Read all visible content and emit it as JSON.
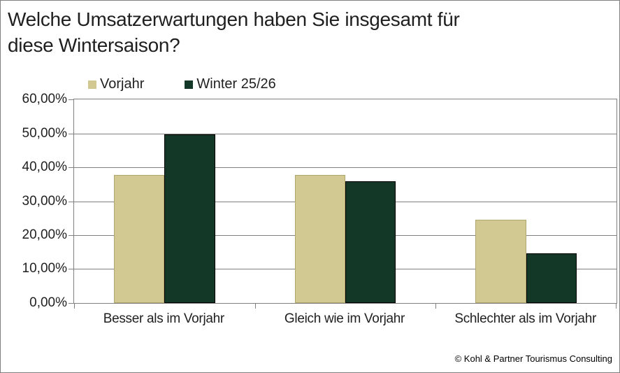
{
  "page": {
    "background": "#ffffff",
    "border_color": "#808080"
  },
  "title": "Welche Umsatzerwartungen haben Sie insgesamt für\ndiese Wintersaison?",
  "legend": {
    "items": [
      {
        "label": "Vorjahr",
        "color": "#d2c892"
      },
      {
        "label": "Winter 25/26",
        "color": "#143828"
      }
    ]
  },
  "chart_data": {
    "type": "bar",
    "title": "Welche Umsatzerwartungen haben Sie insgesamt für diese Wintersaison?",
    "categories": [
      "Besser als im Vorjahr",
      "Gleich wie im Vorjahr",
      "Schlechter als im Vorjahr"
    ],
    "series": [
      {
        "name": "Vorjahr",
        "color": "#d2c892",
        "values": [
          37.8,
          37.8,
          24.5
        ]
      },
      {
        "name": "Winter 25/26",
        "color": "#143828",
        "values": [
          49.7,
          35.9,
          14.6
        ]
      }
    ],
    "xlabel": "",
    "ylabel": "",
    "ylim": [
      0,
      60
    ],
    "y_tick_step": 10,
    "y_ticks": [
      "60,00%",
      "50,00%",
      "40,00%",
      "30,00%",
      "20,00%",
      "10,00%",
      "0,00%"
    ],
    "grid": true,
    "gridline_color": "#808080",
    "legend_position": "top"
  },
  "footer": {
    "copyright": "© Kohl & Partner Tourismus Consulting"
  }
}
